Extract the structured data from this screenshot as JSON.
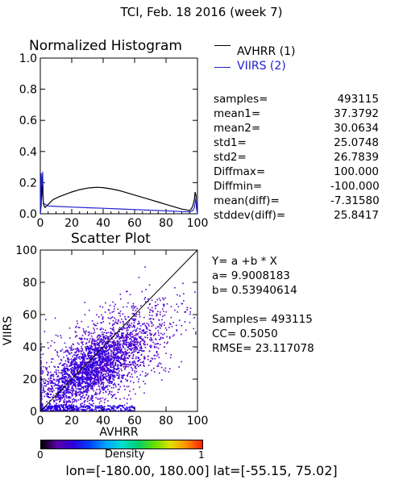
{
  "title": "TCI,  Feb. 18 2016 (week 7)",
  "histogram": {
    "title": "Normalized Histogram",
    "legend": [
      {
        "label": "AVHRR (1)",
        "color": "#000000"
      },
      {
        "label": "VIIRS (2)",
        "color": "#2020d0"
      }
    ],
    "stats": [
      {
        "label": "samples=",
        "value": "493115"
      },
      {
        "label": "mean1=",
        "value": "37.3792"
      },
      {
        "label": "mean2=",
        "value": "30.0634"
      },
      {
        "label": "std1=",
        "value": "25.0748"
      },
      {
        "label": "std2=",
        "value": "26.7839"
      },
      {
        "label": "Diffmax=",
        "value": "100.000"
      },
      {
        "label": "Diffmin=",
        "value": "-100.000"
      },
      {
        "label": "mean(diff)=",
        "value": "-7.31580"
      },
      {
        "label": "stddev(diff)=",
        "value": "25.8417"
      }
    ]
  },
  "scatter": {
    "title": "Scatter Plot",
    "regression": {
      "equation": "Y= a +b * X",
      "a": "a= 9.9008183",
      "b": "b= 0.53940614"
    },
    "metrics": {
      "samples": "Samples= 493115",
      "cc": "CC=  0.5050",
      "rmse": "RMSE= 23.117078"
    }
  },
  "colorbar": {
    "label": "Density",
    "min_label": "0",
    "max_label": "1",
    "colors": [
      "#000000",
      "#5b00a8",
      "#2e00d8",
      "#0040ff",
      "#00a0ff",
      "#00e0d0",
      "#00d070",
      "#60e000",
      "#e0e000",
      "#ff9000",
      "#ff2000"
    ]
  },
  "bounds": "lon=[-180.00, 180.00] lat=[-55.15, 75.02]",
  "chart_data": [
    {
      "type": "line",
      "title": "Normalized Histogram",
      "xlim": [
        0,
        100
      ],
      "ylim": [
        0,
        1.0
      ],
      "x_ticks": [
        "0",
        "20",
        "40",
        "60",
        "80",
        "100"
      ],
      "y_ticks": [
        "0.0",
        "0.2",
        "0.4",
        "0.6",
        "0.8",
        "1.0"
      ],
      "series": [
        {
          "name": "AVHRR (1)",
          "color": "#000000",
          "x": [
            0,
            0.5,
            1,
            1.5,
            2,
            3,
            5,
            8,
            12,
            16,
            20,
            25,
            30,
            33,
            36,
            40,
            45,
            50,
            55,
            60,
            65,
            70,
            75,
            80,
            85,
            90,
            93,
            95,
            96,
            97,
            98,
            98.5,
            99,
            99.5,
            100
          ],
          "values": [
            0,
            0.05,
            0.22,
            0.12,
            0.06,
            0.04,
            0.06,
            0.09,
            0.11,
            0.125,
            0.14,
            0.155,
            0.165,
            0.168,
            0.17,
            0.168,
            0.16,
            0.15,
            0.135,
            0.12,
            0.105,
            0.09,
            0.075,
            0.06,
            0.045,
            0.03,
            0.025,
            0.02,
            0.03,
            0.05,
            0.09,
            0.14,
            0.12,
            0.03,
            0
          ]
        },
        {
          "name": "VIIRS (2)",
          "color": "#2020d0",
          "x": [
            0,
            0.5,
            1,
            1.5,
            2,
            3,
            5,
            10,
            20,
            30,
            40,
            50,
            60,
            70,
            80,
            90,
            95,
            97,
            98,
            99,
            99.5,
            100
          ],
          "values": [
            0,
            0.26,
            0.18,
            0.27,
            0.07,
            0.06,
            0.05,
            0.047,
            0.043,
            0.039,
            0.035,
            0.031,
            0.027,
            0.023,
            0.019,
            0.014,
            0.012,
            0.02,
            0.04,
            0.1,
            0.03,
            0
          ]
        }
      ]
    },
    {
      "type": "heatmap",
      "title": "Scatter Plot",
      "xlabel": "AVHRR",
      "ylabel": "VIIRS",
      "xlim": [
        0,
        100
      ],
      "ylim": [
        0,
        100
      ],
      "x_ticks": [
        "0",
        "20",
        "40",
        "60",
        "80",
        "100"
      ],
      "y_ticks": [
        "0",
        "20",
        "40",
        "60",
        "80",
        "100"
      ],
      "fit_line": {
        "a": 9.9008183,
        "b": 0.53940614
      },
      "one_to_one_line": true
    }
  ]
}
